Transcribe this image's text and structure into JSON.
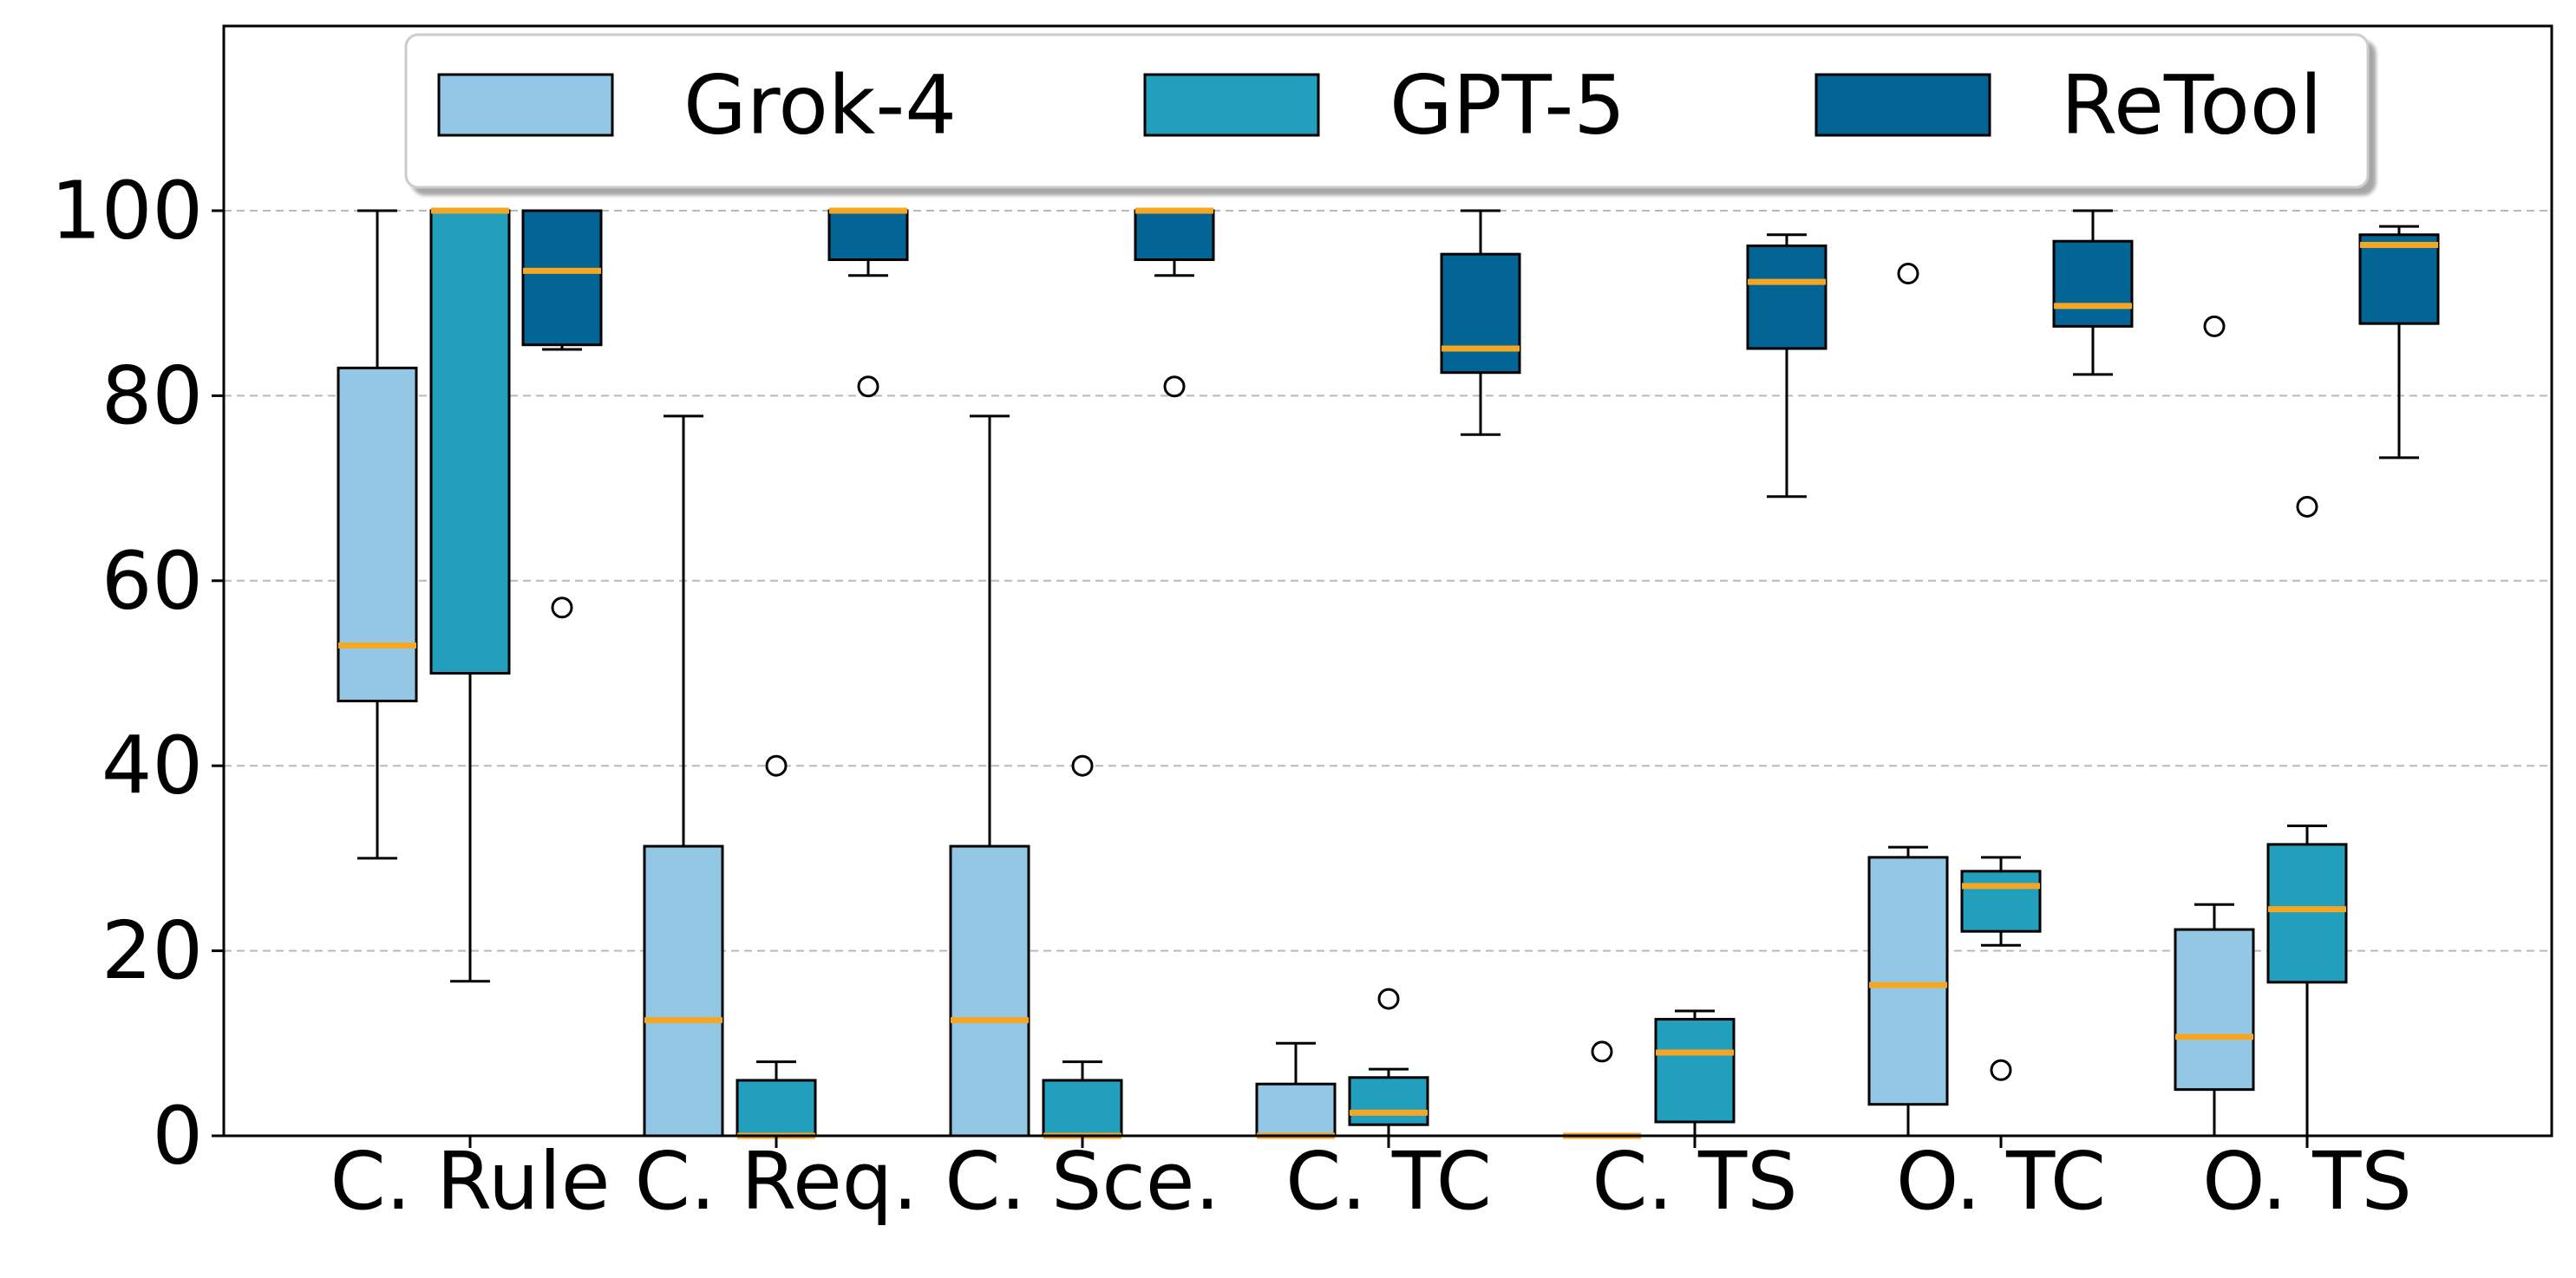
{
  "chart_data": {
    "type": "box",
    "title": "",
    "xlabel": "",
    "ylabel": "",
    "categories": [
      "C. Rule",
      "C. Req.",
      "C. Sce.",
      "C. TC",
      "C. TS",
      "O. TC",
      "O. TS"
    ],
    "ylim": [
      0,
      120
    ],
    "yticks": [
      0,
      20,
      40,
      60,
      80,
      100
    ],
    "grid": "y-dashed",
    "legend": {
      "placement": "top-center"
    },
    "median_color": "#F5A623",
    "series": [
      {
        "name": "Grok-4",
        "color": "#92C8E6",
        "boxes": [
          {
            "whislo": 30,
            "q1": 47,
            "med": 53,
            "q3": 83,
            "whishi": 100,
            "fliers": []
          },
          {
            "whislo": 0,
            "q1": 0,
            "med": 12.5,
            "q3": 31.3,
            "whishi": 77.8,
            "fliers": []
          },
          {
            "whislo": 0,
            "q1": 0,
            "med": 12.5,
            "q3": 31.3,
            "whishi": 77.8,
            "fliers": []
          },
          {
            "whislo": 0,
            "q1": 0,
            "med": 0,
            "q3": 5.6,
            "whishi": 10,
            "fliers": []
          },
          {
            "whislo": 0,
            "q1": 0,
            "med": 0,
            "q3": 0,
            "whishi": 0,
            "fliers": [
              9.1
            ]
          },
          {
            "whislo": 0,
            "q1": 3.4,
            "med": 16.3,
            "q3": 30.1,
            "whishi": 31.2,
            "fliers": [
              93.2
            ]
          },
          {
            "whislo": 0,
            "q1": 5,
            "med": 10.7,
            "q3": 22.3,
            "whishi": 25,
            "fliers": [
              87.5
            ]
          }
        ]
      },
      {
        "name": "GPT-5",
        "color": "#239FBE",
        "boxes": [
          {
            "whislo": 16.7,
            "q1": 50,
            "med": 100,
            "q3": 100,
            "whishi": 100,
            "fliers": []
          },
          {
            "whislo": 0,
            "q1": 0,
            "med": 0,
            "q3": 6,
            "whishi": 8,
            "fliers": [
              40
            ]
          },
          {
            "whislo": 0,
            "q1": 0,
            "med": 0,
            "q3": 6,
            "whishi": 8,
            "fliers": [
              40
            ]
          },
          {
            "whislo": 0,
            "q1": 1.2,
            "med": 2.5,
            "q3": 6.3,
            "whishi": 7.2,
            "fliers": [
              14.8
            ]
          },
          {
            "whislo": 0,
            "q1": 1.5,
            "med": 9,
            "q3": 12.6,
            "whishi": 13.5,
            "fliers": []
          },
          {
            "whislo": 20.6,
            "q1": 22.1,
            "med": 27,
            "q3": 28.6,
            "whishi": 30.1,
            "fliers": [
              7.1
            ]
          },
          {
            "whislo": 0,
            "q1": 16.6,
            "med": 24.5,
            "q3": 31.5,
            "whishi": 33.5,
            "fliers": [
              68
            ]
          }
        ]
      },
      {
        "name": "ReTool",
        "color": "#036496",
        "boxes": [
          {
            "whislo": 85,
            "q1": 85.5,
            "med": 93.5,
            "q3": 100,
            "whishi": 100,
            "fliers": [
              57.1
            ]
          },
          {
            "whislo": 93,
            "q1": 94.7,
            "med": 100,
            "q3": 100,
            "whishi": 100,
            "fliers": [
              81
            ]
          },
          {
            "whislo": 93,
            "q1": 94.7,
            "med": 100,
            "q3": 100,
            "whishi": 100,
            "fliers": [
              81
            ]
          },
          {
            "whislo": 75.8,
            "q1": 82.5,
            "med": 85.1,
            "q3": 95.3,
            "whishi": 100,
            "fliers": []
          },
          {
            "whislo": 69.1,
            "q1": 85.1,
            "med": 92.3,
            "q3": 96.2,
            "whishi": 97.4,
            "fliers": []
          },
          {
            "whislo": 82.3,
            "q1": 87.5,
            "med": 89.7,
            "q3": 96.7,
            "whishi": 100,
            "fliers": []
          },
          {
            "whislo": 73.3,
            "q1": 87.8,
            "med": 96.3,
            "q3": 97.4,
            "whishi": 98.3,
            "fliers": []
          }
        ]
      }
    ]
  }
}
